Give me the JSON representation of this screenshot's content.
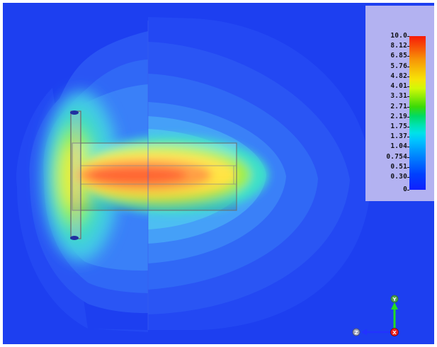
{
  "legend": {
    "ticks": [
      "10.0",
      "8.12",
      "6.85",
      "5.76",
      "4.82",
      "4.01",
      "3.31",
      "2.71",
      "2.19",
      "1.75",
      "1.37",
      "1.04",
      "0.754",
      "0.51",
      "0.30",
      "0"
    ]
  },
  "axes": {
    "y_label": "Y",
    "z_label": "Z",
    "x_label": "X"
  },
  "colors": {
    "background": "#1d3ff0",
    "field_high": "#ff1a00",
    "field_mid": "#ffe800",
    "field_low": "#00e8e8",
    "y_axis": "#22dd22",
    "z_axis": "#2233ff",
    "x_axis": "#ee2222"
  }
}
